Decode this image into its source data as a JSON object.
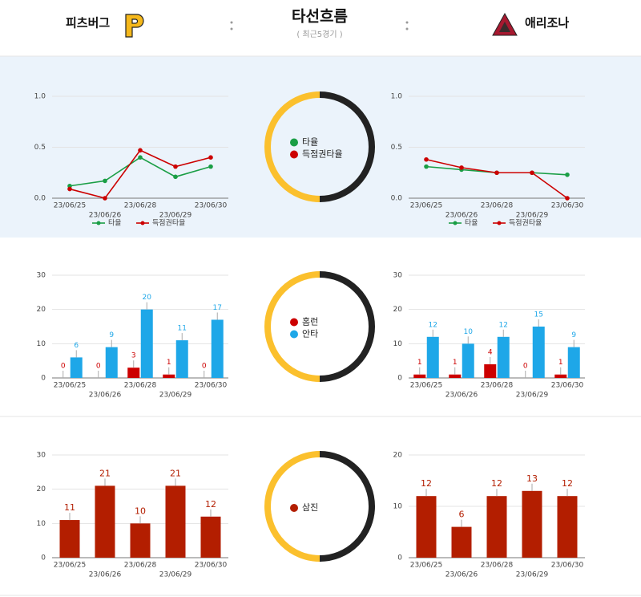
{
  "header": {
    "home_team": "피츠버그",
    "title": "타선흐름",
    "subtitle": "( 최근5경기 )",
    "away_team": "애리조나"
  },
  "chart_data": [
    {
      "type": "line",
      "categories": [
        "23/06/25",
        "23/06/26",
        "23/06/28",
        "23/06/29",
        "23/06/30"
      ],
      "series": [
        {
          "name": "타율",
          "color": "#1a9e45",
          "values": [
            0.12,
            0.17,
            0.4,
            0.21,
            0.31
          ]
        },
        {
          "name": "득점권타율",
          "color": "#cc0000",
          "values": [
            0.09,
            0.0,
            0.47,
            0.31,
            0.4
          ]
        }
      ],
      "ylim": [
        0,
        1
      ],
      "yticks": [
        {
          "value": 0,
          "label": "0.0"
        },
        {
          "value": 0.5,
          "label": "0.5"
        },
        {
          "value": 1,
          "label": "1.0"
        }
      ],
      "grid": true,
      "legend": "bottom"
    },
    {
      "type": "line",
      "categories": [
        "23/06/25",
        "23/06/26",
        "23/06/28",
        "23/06/29",
        "23/06/30"
      ],
      "series": [
        {
          "name": "타율",
          "color": "#1a9e45",
          "values": [
            0.31,
            0.28,
            0.25,
            0.25,
            0.23
          ]
        },
        {
          "name": "득점권타율",
          "color": "#cc0000",
          "values": [
            0.38,
            0.3,
            0.25,
            0.25,
            0.0
          ]
        }
      ],
      "ylim": [
        0,
        1
      ],
      "yticks": [
        {
          "value": 0,
          "label": "0.0"
        },
        {
          "value": 0.5,
          "label": "0.5"
        },
        {
          "value": 1,
          "label": "1.0"
        }
      ],
      "grid": true,
      "legend": "bottom"
    },
    {
      "type": "bar",
      "categories": [
        "23/06/25",
        "23/06/26",
        "23/06/28",
        "23/06/29",
        "23/06/30"
      ],
      "series": [
        {
          "name": "홈런",
          "color": "#cc0000",
          "values": [
            0,
            0,
            3,
            1,
            0
          ]
        },
        {
          "name": "안타",
          "color": "#1ea7e8",
          "values": [
            6,
            9,
            20,
            11,
            17
          ]
        }
      ],
      "ylim": [
        0,
        30
      ],
      "yticks": [
        0,
        10,
        20,
        30
      ],
      "grid": true
    },
    {
      "type": "bar",
      "categories": [
        "23/06/25",
        "23/06/26",
        "23/06/28",
        "23/06/29",
        "23/06/30"
      ],
      "series": [
        {
          "name": "홈런",
          "color": "#cc0000",
          "values": [
            1,
            1,
            4,
            0,
            1
          ]
        },
        {
          "name": "안타",
          "color": "#1ea7e8",
          "values": [
            12,
            10,
            12,
            15,
            9
          ]
        }
      ],
      "ylim": [
        0,
        30
      ],
      "yticks": [
        0,
        10,
        20,
        30
      ],
      "grid": true
    },
    {
      "type": "bar",
      "categories": [
        "23/06/25",
        "23/06/26",
        "23/06/28",
        "23/06/29",
        "23/06/30"
      ],
      "series": [
        {
          "name": "삼진",
          "color": "#b31e00",
          "values": [
            11,
            21,
            10,
            21,
            12
          ]
        }
      ],
      "ylim": [
        0,
        30
      ],
      "yticks": [
        0,
        10,
        20,
        30
      ],
      "grid": true
    },
    {
      "type": "bar",
      "categories": [
        "23/06/25",
        "23/06/26",
        "23/06/28",
        "23/06/29",
        "23/06/30"
      ],
      "series": [
        {
          "name": "삼진",
          "color": "#b31e00",
          "values": [
            12,
            6,
            12,
            13,
            12
          ]
        }
      ],
      "ylim": [
        0,
        20
      ],
      "yticks": [
        0,
        10,
        20
      ],
      "grid": true
    }
  ]
}
